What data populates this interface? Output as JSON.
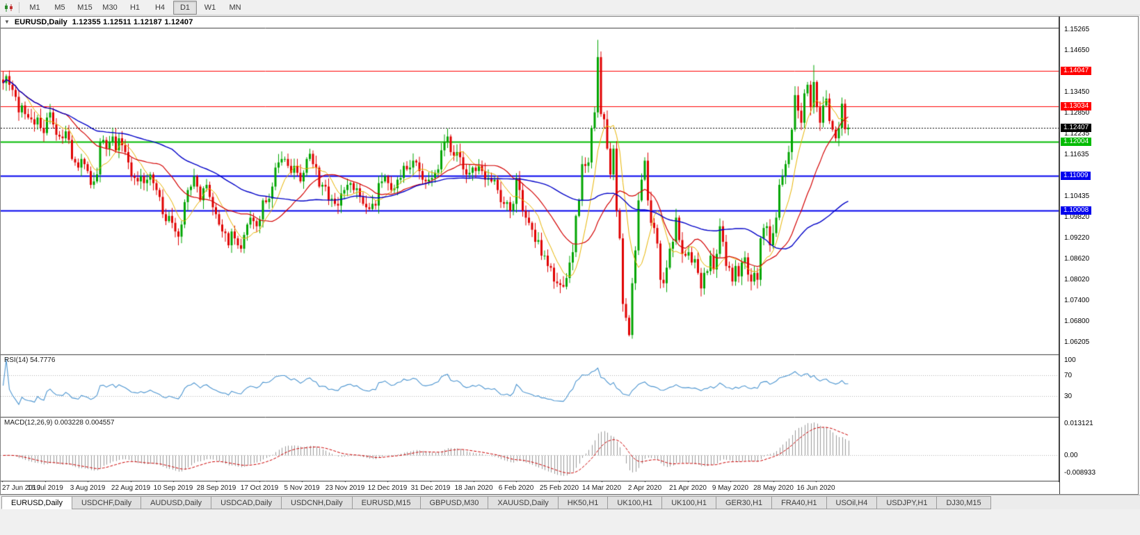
{
  "toolbar": {
    "timeframes": [
      "M1",
      "M5",
      "M15",
      "M30",
      "H1",
      "H4",
      "D1",
      "W1",
      "MN"
    ],
    "active_timeframe": "D1"
  },
  "chart": {
    "symbol": "EURUSD,Daily",
    "ohlc_text": "1.12355 1.12511 1.12187 1.12407"
  },
  "indicators": {
    "rsi_label": "RSI(14) 54.7776",
    "macd_label": "MACD(12,26,9) 0.003228 0.004557",
    "rsi_axis": [
      "100",
      "70",
      "30"
    ],
    "macd_axis": [
      "0.013121",
      "0.00",
      "-0.008933"
    ]
  },
  "price_axis": {
    "ticks": [
      "1.15265",
      "1.14650",
      "1.13450",
      "1.12850",
      "1.12235",
      "1.11635",
      "1.10435",
      "1.09820",
      "1.09220",
      "1.08620",
      "1.08020",
      "1.07400",
      "1.06800",
      "1.06205"
    ],
    "levels": [
      {
        "label": "1.14047",
        "color": "#ff0000",
        "width": 1,
        "style": "solid"
      },
      {
        "label": "1.13034",
        "color": "#ff0000",
        "width": 1,
        "style": "solid"
      },
      {
        "label": "1.12407",
        "color": "#000000",
        "width": 1,
        "style": "dotted"
      },
      {
        "label": "1.12004",
        "color": "#00bb00",
        "width": 2,
        "style": "solid"
      },
      {
        "label": "1.11009",
        "color": "#0000ee",
        "width": 2,
        "style": "solid"
      },
      {
        "label": "1.10008",
        "color": "#0000ee",
        "width": 2,
        "style": "solid"
      }
    ]
  },
  "date_axis": [
    "27 Jun 2019",
    "16 Jul 2019",
    "3 Aug 2019",
    "22 Aug 2019",
    "10 Sep 2019",
    "28 Sep 2019",
    "17 Oct 2019",
    "5 Nov 2019",
    "23 Nov 2019",
    "12 Dec 2019",
    "31 Dec 2019",
    "18 Jan 2020",
    "6 Feb 2020",
    "25 Feb 2020",
    "14 Mar 2020",
    "2 Apr 2020",
    "21 Apr 2020",
    "9 May 2020",
    "28 May 2020",
    "16 Jun 2020"
  ],
  "tabs": [
    "EURUSD,Daily",
    "USDCHF,Daily",
    "AUDUSD,Daily",
    "USDCAD,Daily",
    "USDCNH,Daily",
    "EURUSD,M15",
    "GBPUSD,M30",
    "XAUUSD,Daily",
    "HK50,H1",
    "UK100,H1",
    "UK100,H1",
    "GER30,H1",
    "FRA40,H1",
    "USOil,H4",
    "USDJPY,H1",
    "DJ30,M15"
  ],
  "active_tab_index": 0,
  "colors": {
    "candle_up": "#00a500",
    "candle_down": "#e00000",
    "ma_fast": "#e8b400",
    "ma_mid": "#d40000",
    "ma_slow": "#0000c8",
    "rsi_line": "#4a94d0",
    "macd_hist": "#999999",
    "macd_signal": "#cc0000",
    "pane_border": "#3c3c3c",
    "grid_dotted": "#b0b0b0"
  },
  "chart_data": {
    "type": "candlestick",
    "symbol": "EURUSD",
    "timeframe": "Daily",
    "x_range": [
      "27 Jun 2019",
      "24 Jun 2020"
    ],
    "price_range": {
      "max": 1.153,
      "min": 1.0584
    },
    "first_open": 1.138,
    "ma_periods": [
      8,
      21,
      55
    ],
    "rsi_period": 14,
    "macd_params": [
      12,
      26,
      9
    ],
    "closes": [
      1.137,
      1.139,
      1.1365,
      1.135,
      1.133,
      1.1285,
      1.1305,
      1.128,
      1.127,
      1.1265,
      1.125,
      1.127,
      1.124,
      1.1225,
      1.127,
      1.1285,
      1.125,
      1.122,
      1.1215,
      1.121,
      1.123,
      1.1205,
      1.115,
      1.114,
      1.1125,
      1.115,
      1.1135,
      1.1115,
      1.1075,
      1.1085,
      1.1105,
      1.12,
      1.1205,
      1.118,
      1.12,
      1.1215,
      1.1175,
      1.121,
      1.119,
      1.117,
      1.114,
      1.11,
      1.1095,
      1.1085,
      1.11,
      1.108,
      1.109,
      1.1105,
      1.108,
      1.106,
      1.104,
      1.099,
      1.097,
      1.0985,
      1.0965,
      1.094,
      1.0925,
      1.096,
      1.1025,
      1.106,
      1.107,
      1.11,
      1.107,
      1.103,
      1.1065,
      1.1075,
      1.104,
      1.101,
      1.099,
      1.096,
      1.094,
      1.0935,
      1.09,
      1.094,
      1.092,
      1.09,
      1.089,
      1.093,
      1.096,
      1.098,
      1.097,
      1.0955,
      1.0975,
      1.103,
      1.1025,
      1.1035,
      1.107,
      1.1125,
      1.114,
      1.115,
      1.115,
      1.113,
      1.111,
      1.113,
      1.111,
      1.1085,
      1.111,
      1.115,
      1.1165,
      1.1135,
      1.1125,
      1.107,
      1.1075,
      1.107,
      1.103,
      1.1035,
      1.102,
      1.1015,
      1.105,
      1.106,
      1.1075,
      1.108,
      1.106,
      1.1065,
      1.104,
      1.102,
      1.101,
      1.1005,
      1.102,
      1.1015,
      1.108,
      1.1085,
      1.11,
      1.108,
      1.106,
      1.1065,
      1.109,
      1.1095,
      1.113,
      1.112,
      1.1125,
      1.1145,
      1.114,
      1.1115,
      1.109,
      1.1085,
      1.109,
      1.1095,
      1.111,
      1.112,
      1.1175,
      1.12,
      1.1215,
      1.117,
      1.116,
      1.117,
      1.1155,
      1.112,
      1.1105,
      1.111,
      1.1125,
      1.1115,
      1.113,
      1.1115,
      1.109,
      1.1095,
      1.1085,
      1.109,
      1.106,
      1.1025,
      1.102,
      1.1025,
      1.1,
      1.102,
      1.1095,
      1.106,
      1.1,
      1.098,
      1.0965,
      1.0945,
      1.091,
      1.0915,
      1.087,
      1.087,
      1.084,
      1.0835,
      1.0795,
      1.079,
      1.0785,
      1.078,
      1.0805,
      1.085,
      1.088,
      1.0985,
      1.103,
      1.1135,
      1.113,
      1.114,
      1.124,
      1.1285,
      1.1445,
      1.128,
      1.1265,
      1.118,
      1.1105,
      1.118,
      1.1,
      1.092,
      1.073,
      1.069,
      1.064,
      1.079,
      1.0885,
      1.103,
      1.109,
      1.1145,
      1.103,
      1.0965,
      1.095,
      1.0905,
      1.08,
      1.079,
      1.0835,
      1.089,
      1.091,
      1.098,
      1.0915,
      1.0875,
      1.087,
      1.088,
      1.085,
      1.086,
      1.082,
      1.0775,
      1.082,
      1.0825,
      1.087,
      1.083,
      1.0875,
      1.0955,
      1.091,
      1.084,
      1.0835,
      1.0795,
      1.084,
      1.081,
      1.085,
      1.0865,
      1.0815,
      1.0795,
      1.082,
      1.08,
      1.092,
      1.095,
      1.0955,
      1.09,
      1.0935,
      1.098,
      1.1075,
      1.11,
      1.1135,
      1.117,
      1.1235,
      1.1335,
      1.129,
      1.1255,
      1.134,
      1.1365,
      1.13,
      1.1373,
      1.13,
      1.1255,
      1.1305,
      1.1325,
      1.126,
      1.1235,
      1.121,
      1.124,
      1.131,
      1.1236,
      1.12407
    ],
    "wick_overrides": {
      "76": {
        "low": 1.0879
      },
      "179": {
        "low": 1.0777
      },
      "190": {
        "high": 1.1495
      },
      "200": {
        "low": 1.0636
      },
      "259": {
        "high": 1.1422
      },
      "270": {
        "high": 1.12511,
        "low": 1.12187
      }
    }
  }
}
